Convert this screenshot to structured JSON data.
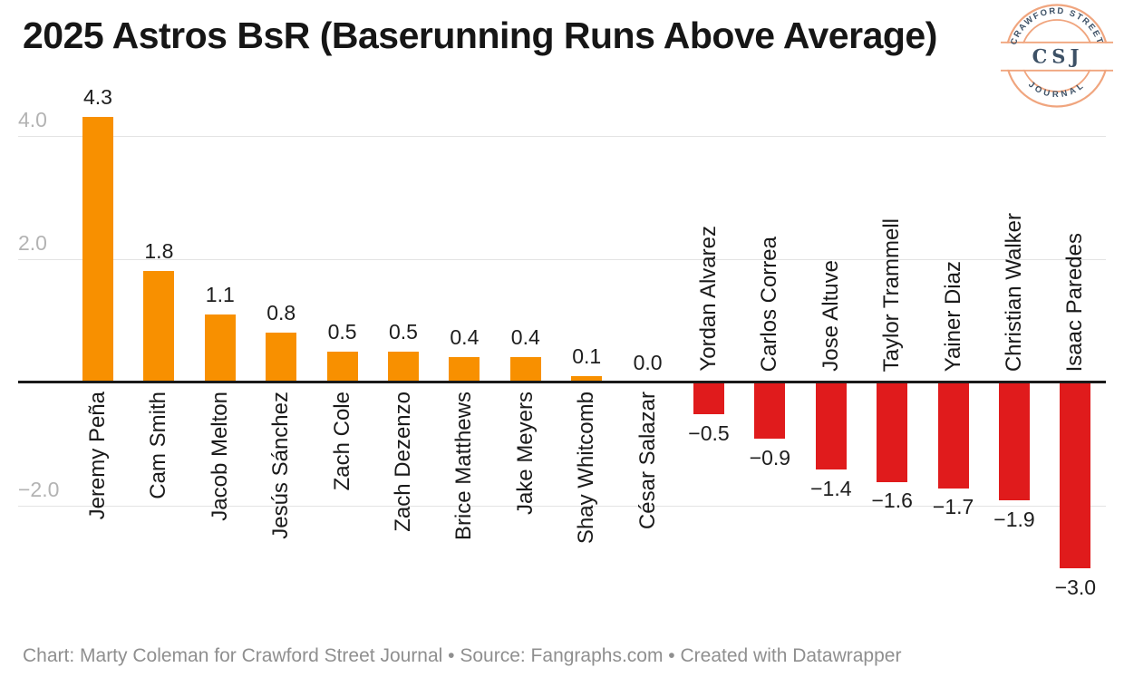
{
  "title": "2025 Astros BsR (Baserunning Runs Above Average)",
  "footer": "Chart: Marty Coleman for Crawford Street Journal • Source: Fangraphs.com • Created with Datawrapper",
  "logo": {
    "top_text": "CRAWFORD STREET",
    "center_text": "CSJ",
    "bottom_text": "JOURNAL"
  },
  "colors": {
    "positive_bar": "#F89000",
    "negative_bar": "#E01B1C",
    "gridline": "#e3e3e3",
    "baseline": "#1a1a1a",
    "tick_label": "#b3b3b3",
    "value_label": "#1d1d1d",
    "player_label": "#1a1a1a",
    "footer_text": "#8f8f8f",
    "logo_ring": "#F0A57E",
    "logo_text": "#3D5166"
  },
  "chart_data": {
    "type": "bar",
    "title": "2025 Astros BsR (Baserunning Runs Above Average)",
    "categories": [
      "Jeremy Peña",
      "Cam Smith",
      "Jacob Melton",
      "Jesús Sánchez",
      "Zach Cole",
      "Zach Dezenzo",
      "Brice Matthews",
      "Jake Meyers",
      "Shay Whitcomb",
      "César Salazar",
      "Yordan Alvarez",
      "Carlos Correa",
      "Jose Altuve",
      "Taylor Trammell",
      "Yainer Diaz",
      "Christian Walker",
      "Isaac Paredes"
    ],
    "values": [
      4.3,
      1.8,
      1.1,
      0.8,
      0.5,
      0.5,
      0.4,
      0.4,
      0.1,
      0.0,
      -0.5,
      -0.9,
      -1.4,
      -1.6,
      -1.7,
      -1.9,
      -3.0
    ],
    "xlabel": "",
    "ylabel": "",
    "yticks": [
      4.0,
      2.0,
      -2.0
    ],
    "ytick_labels": [
      "4.0",
      "2.0",
      "−2.0"
    ],
    "ylim": [
      -3.5,
      4.5
    ],
    "grid": "horizontal",
    "legend": "none",
    "value_labels": "shown at bar ends",
    "category_labels": "rotated 90°, positive names below axis, negative names above axis"
  }
}
